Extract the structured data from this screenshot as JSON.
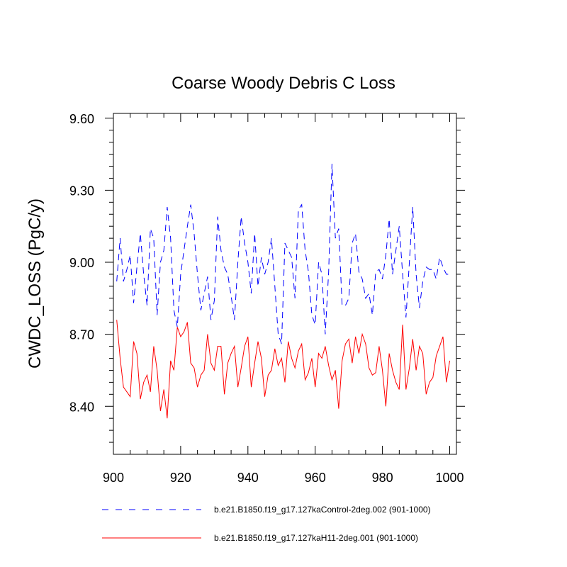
{
  "chart_data": {
    "type": "line",
    "title": "Coarse Woody Debris C Loss",
    "xlabel": "",
    "ylabel": "CWDC_LOSS  (PgC/y)",
    "xlim": [
      900,
      1002
    ],
    "ylim": [
      8.2,
      9.62
    ],
    "xticks": [
      900,
      920,
      940,
      960,
      980,
      1000
    ],
    "xtick_labels": [
      "900",
      "920",
      "940",
      "960",
      "980",
      "1000"
    ],
    "yticks": [
      8.4,
      8.7,
      9.0,
      9.3,
      9.6
    ],
    "ytick_labels": [
      "8.40",
      "8.70",
      "9.00",
      "9.30",
      "9.60"
    ],
    "legend_position": "bottom",
    "x": [
      901,
      902,
      903,
      904,
      905,
      906,
      907,
      908,
      909,
      910,
      911,
      912,
      913,
      914,
      915,
      916,
      917,
      918,
      919,
      920,
      921,
      922,
      923,
      924,
      925,
      926,
      927,
      928,
      929,
      930,
      931,
      932,
      933,
      934,
      935,
      936,
      937,
      938,
      939,
      940,
      941,
      942,
      943,
      944,
      945,
      946,
      947,
      948,
      949,
      950,
      951,
      952,
      953,
      954,
      955,
      956,
      957,
      958,
      959,
      960,
      961,
      962,
      963,
      964,
      965,
      966,
      967,
      968,
      969,
      970,
      971,
      972,
      973,
      974,
      975,
      976,
      977,
      978,
      979,
      980,
      981,
      982,
      983,
      984,
      985,
      986,
      987,
      988,
      989,
      990,
      991,
      992,
      993,
      994,
      995,
      996,
      997,
      998,
      999,
      1000
    ],
    "series": [
      {
        "name": "b.e21.B1850.f19_g17.127kaControl-2deg.002 (901-1000)",
        "color": "#0000ff",
        "dash": "dashed",
        "values": [
          8.92,
          9.1,
          8.92,
          8.97,
          9.03,
          8.83,
          8.98,
          9.12,
          8.95,
          8.82,
          9.14,
          9.1,
          8.78,
          9.0,
          9.05,
          9.23,
          9.1,
          8.8,
          8.73,
          8.95,
          9.05,
          9.15,
          9.24,
          9.12,
          8.95,
          8.8,
          8.87,
          8.94,
          8.76,
          8.84,
          9.19,
          9.05,
          8.98,
          8.95,
          8.86,
          8.76,
          9.0,
          9.19,
          9.08,
          9.0,
          8.87,
          9.12,
          8.9,
          9.02,
          8.95,
          9.0,
          9.1,
          8.9,
          8.7,
          8.66,
          9.08,
          9.05,
          9.02,
          8.85,
          9.22,
          9.24,
          9.05,
          8.96,
          8.78,
          8.74,
          9.0,
          8.95,
          8.7,
          8.96,
          9.41,
          9.1,
          9.14,
          8.82,
          8.82,
          8.85,
          9.08,
          9.12,
          8.96,
          8.93,
          8.85,
          8.87,
          8.78,
          8.96,
          8.97,
          8.93,
          9.03,
          9.18,
          8.95,
          9.05,
          9.15,
          8.95,
          8.77,
          9.0,
          9.23,
          8.95,
          8.81,
          8.92,
          8.98,
          8.97,
          8.97,
          8.93,
          9.02,
          8.98,
          8.95,
          8.95
        ]
      },
      {
        "name": "b.e21.B1850.f19_g17.127kaH11-2deg.001 (901-1000)",
        "color": "#ff0000",
        "dash": "solid",
        "values": [
          8.76,
          8.6,
          8.48,
          8.46,
          8.44,
          8.67,
          8.62,
          8.43,
          8.5,
          8.53,
          8.46,
          8.65,
          8.55,
          8.38,
          8.47,
          8.35,
          8.59,
          8.55,
          8.73,
          8.69,
          8.71,
          8.75,
          8.58,
          8.56,
          8.48,
          8.53,
          8.55,
          8.7,
          8.58,
          8.55,
          8.65,
          8.65,
          8.45,
          8.58,
          8.62,
          8.65,
          8.48,
          8.56,
          8.65,
          8.69,
          8.48,
          8.58,
          8.67,
          8.6,
          8.44,
          8.53,
          8.55,
          8.64,
          8.57,
          8.6,
          8.5,
          8.67,
          8.6,
          8.56,
          8.63,
          8.66,
          8.51,
          8.54,
          8.6,
          8.48,
          8.62,
          8.6,
          8.65,
          8.57,
          8.51,
          8.55,
          8.39,
          8.59,
          8.66,
          8.68,
          8.58,
          8.69,
          8.62,
          8.7,
          8.66,
          8.56,
          8.53,
          8.54,
          8.65,
          8.55,
          8.4,
          8.62,
          8.55,
          8.5,
          8.47,
          8.74,
          8.47,
          8.56,
          8.68,
          8.55,
          8.65,
          8.62,
          8.45,
          8.5,
          8.52,
          8.61,
          8.65,
          8.69,
          8.5,
          8.59
        ]
      }
    ]
  }
}
